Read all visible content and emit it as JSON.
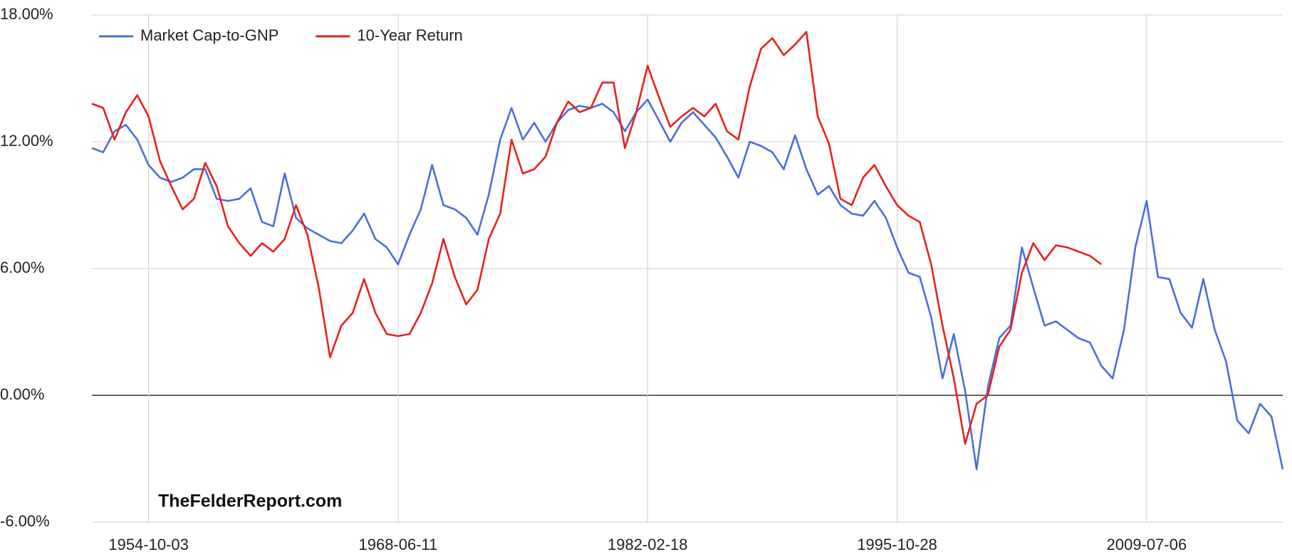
{
  "chart_data": {
    "type": "line",
    "annotation": "TheFelderReport.com",
    "categories": [
      null,
      null,
      null,
      null,
      null,
      "1954-10-03",
      null,
      null,
      null,
      null,
      null,
      null,
      null,
      null,
      null,
      null,
      null,
      null,
      null,
      null,
      null,
      null,
      null,
      null,
      null,
      null,
      null,
      "1968-06-11",
      null,
      null,
      null,
      null,
      null,
      null,
      null,
      null,
      null,
      null,
      null,
      null,
      null,
      null,
      null,
      null,
      null,
      null,
      null,
      null,
      null,
      "1982-02-18",
      null,
      null,
      null,
      null,
      null,
      null,
      null,
      null,
      null,
      null,
      null,
      null,
      null,
      null,
      null,
      null,
      null,
      null,
      null,
      null,
      null,
      "1995-10-28",
      null,
      null,
      null,
      null,
      null,
      null,
      null,
      null,
      null,
      null,
      null,
      null,
      null,
      null,
      null,
      null,
      null,
      null,
      null,
      null,
      null,
      "2009-07-06",
      null,
      null,
      null,
      null,
      null,
      null,
      null,
      null,
      null,
      null,
      null,
      null
    ],
    "series": [
      {
        "name": "Market Cap-to-GNP",
        "color": "#4a6fdc",
        "values": [
          11.7,
          11.5,
          12.5,
          12.8,
          12.1,
          10.9,
          10.3,
          10.1,
          10.3,
          10.7,
          10.7,
          9.3,
          9.2,
          9.3,
          9.8,
          8.2,
          8.0,
          10.5,
          8.4,
          7.9,
          7.6,
          7.3,
          7.2,
          7.8,
          8.6,
          7.4,
          7.0,
          6.2,
          7.6,
          8.8,
          10.9,
          9.0,
          8.8,
          8.4,
          7.6,
          9.5,
          12.1,
          13.6,
          12.1,
          12.9,
          12.0,
          12.9,
          13.5,
          13.7,
          13.6,
          13.8,
          13.4,
          12.5,
          13.4,
          14.0,
          13.0,
          12.0,
          12.9,
          13.4,
          12.8,
          12.2,
          11.3,
          10.3,
          12.0,
          11.8,
          11.5,
          10.7,
          12.3,
          10.7,
          9.5,
          9.9,
          9.0,
          8.6,
          8.5,
          9.2,
          8.4,
          7.0,
          5.8,
          5.6,
          3.7,
          0.8,
          2.9,
          0.2,
          -3.5,
          0.4,
          2.7,
          3.3,
          7.0,
          5.1,
          3.3,
          3.5,
          3.1,
          2.7,
          2.5,
          1.4,
          0.8,
          3.1,
          7.0,
          9.2,
          5.6,
          5.5,
          3.9,
          3.2,
          5.5,
          3.1,
          1.6,
          -1.2,
          -1.8,
          -0.4,
          -1.0,
          -3.5
        ]
      },
      {
        "name": "10-Year Return",
        "color": "#e8201c",
        "values": [
          13.8,
          13.6,
          12.1,
          13.4,
          14.2,
          13.2,
          11.1,
          9.9,
          8.8,
          9.3,
          11.0,
          9.9,
          8.0,
          7.2,
          6.6,
          7.2,
          6.8,
          7.4,
          9.0,
          7.6,
          5.1,
          1.8,
          3.3,
          3.9,
          5.5,
          3.9,
          2.9,
          2.8,
          2.9,
          3.9,
          5.3,
          7.4,
          5.6,
          4.3,
          5.0,
          7.4,
          8.6,
          12.1,
          10.5,
          10.7,
          11.3,
          12.9,
          13.9,
          13.4,
          13.6,
          14.8,
          14.8,
          11.7,
          13.4,
          15.6,
          14.1,
          12.7,
          13.2,
          13.6,
          13.2,
          13.8,
          12.5,
          12.1,
          14.6,
          16.4,
          16.9,
          16.1,
          16.6,
          17.2,
          13.2,
          11.9,
          9.3,
          9.0,
          10.3,
          10.9,
          9.9,
          9.0,
          8.5,
          8.2,
          6.2,
          3.3,
          0.8,
          -2.3,
          -0.4,
          0.0,
          2.3,
          3.1,
          5.8,
          7.2,
          6.4,
          7.1,
          7.0,
          6.8,
          6.6,
          6.2,
          null,
          null,
          null,
          null,
          null,
          null,
          null,
          null,
          null,
          null,
          null,
          null,
          null,
          null,
          null,
          null
        ]
      }
    ],
    "ylim": [
      -6,
      18
    ],
    "yticks": [
      {
        "value": -6,
        "label": "-6.00%"
      },
      {
        "value": 0,
        "label": "0.00%"
      },
      {
        "value": 6,
        "label": "6.00%"
      },
      {
        "value": 12,
        "label": "12.00%"
      },
      {
        "value": 18,
        "label": "18.00%"
      }
    ],
    "grid": true,
    "legend": "top-left"
  }
}
